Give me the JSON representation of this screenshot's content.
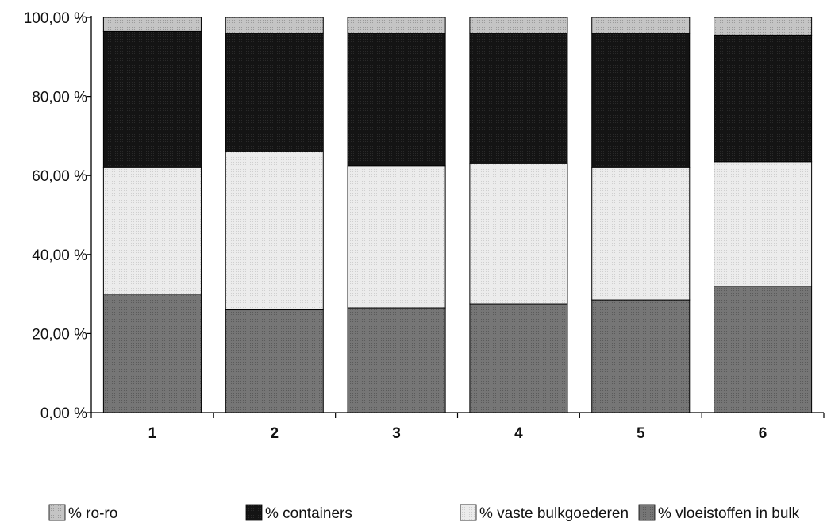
{
  "chart_data": {
    "type": "bar",
    "stacked": true,
    "categories": [
      "1",
      "2",
      "3",
      "4",
      "5",
      "6"
    ],
    "series": [
      {
        "name": "% vloeistoffen in bulk",
        "values": [
          30,
          26,
          26.5,
          27.5,
          28.5,
          32
        ],
        "color": "#6f6f6f"
      },
      {
        "name": "% vaste bulkgoederen",
        "values": [
          32,
          40,
          36,
          35.5,
          33.5,
          31.5
        ],
        "color": "#e6e6e6"
      },
      {
        "name": "% containers",
        "values": [
          34.5,
          30,
          33.5,
          33,
          34,
          32
        ],
        "color": "#111111"
      },
      {
        "name": "% ro-ro",
        "values": [
          3.5,
          4,
          4,
          4,
          4,
          4.5
        ],
        "color": "#bdbdbd"
      }
    ],
    "ylim": [
      0,
      100
    ],
    "yticks": [
      "0,00 %",
      "20,00 %",
      "40,00 %",
      "60,00 %",
      "80,00 %",
      "100,00 %"
    ],
    "legend_order": [
      "% ro-ro",
      "% containers",
      "% vaste bulkgoederen",
      "% vloeistoffen in bulk"
    ],
    "legend_position": "bottom",
    "grid": false,
    "title": "",
    "xlabel": "",
    "ylabel": ""
  }
}
